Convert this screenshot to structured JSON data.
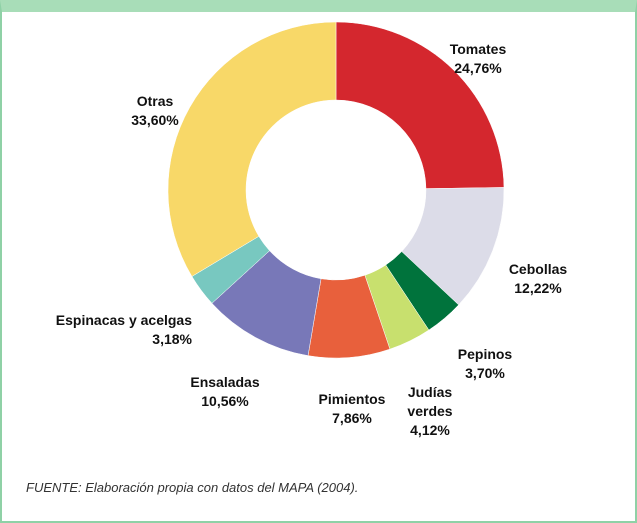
{
  "chart_data": {
    "type": "donut",
    "categories": [
      "Tomates",
      "Cebollas",
      "Pepinos",
      "Judías verdes",
      "Pimientos",
      "Ensaladas",
      "Espinacas y acelgas",
      "Otras"
    ],
    "values": [
      24.76,
      12.22,
      3.7,
      4.12,
      7.86,
      10.56,
      3.18,
      33.6
    ],
    "value_labels": [
      "24,76%",
      "12,22%",
      "3,70%",
      "4,12%",
      "7,86%",
      "10,56%",
      "3,18%",
      "33,60%"
    ],
    "colors": [
      "#d4272e",
      "#dcdce8",
      "#00733c",
      "#c8e06e",
      "#e8603c",
      "#7878b8",
      "#78c8c0",
      "#f8d868"
    ],
    "source": "FUENTE: Elaboración propia con datos del MAPA (2004)."
  }
}
